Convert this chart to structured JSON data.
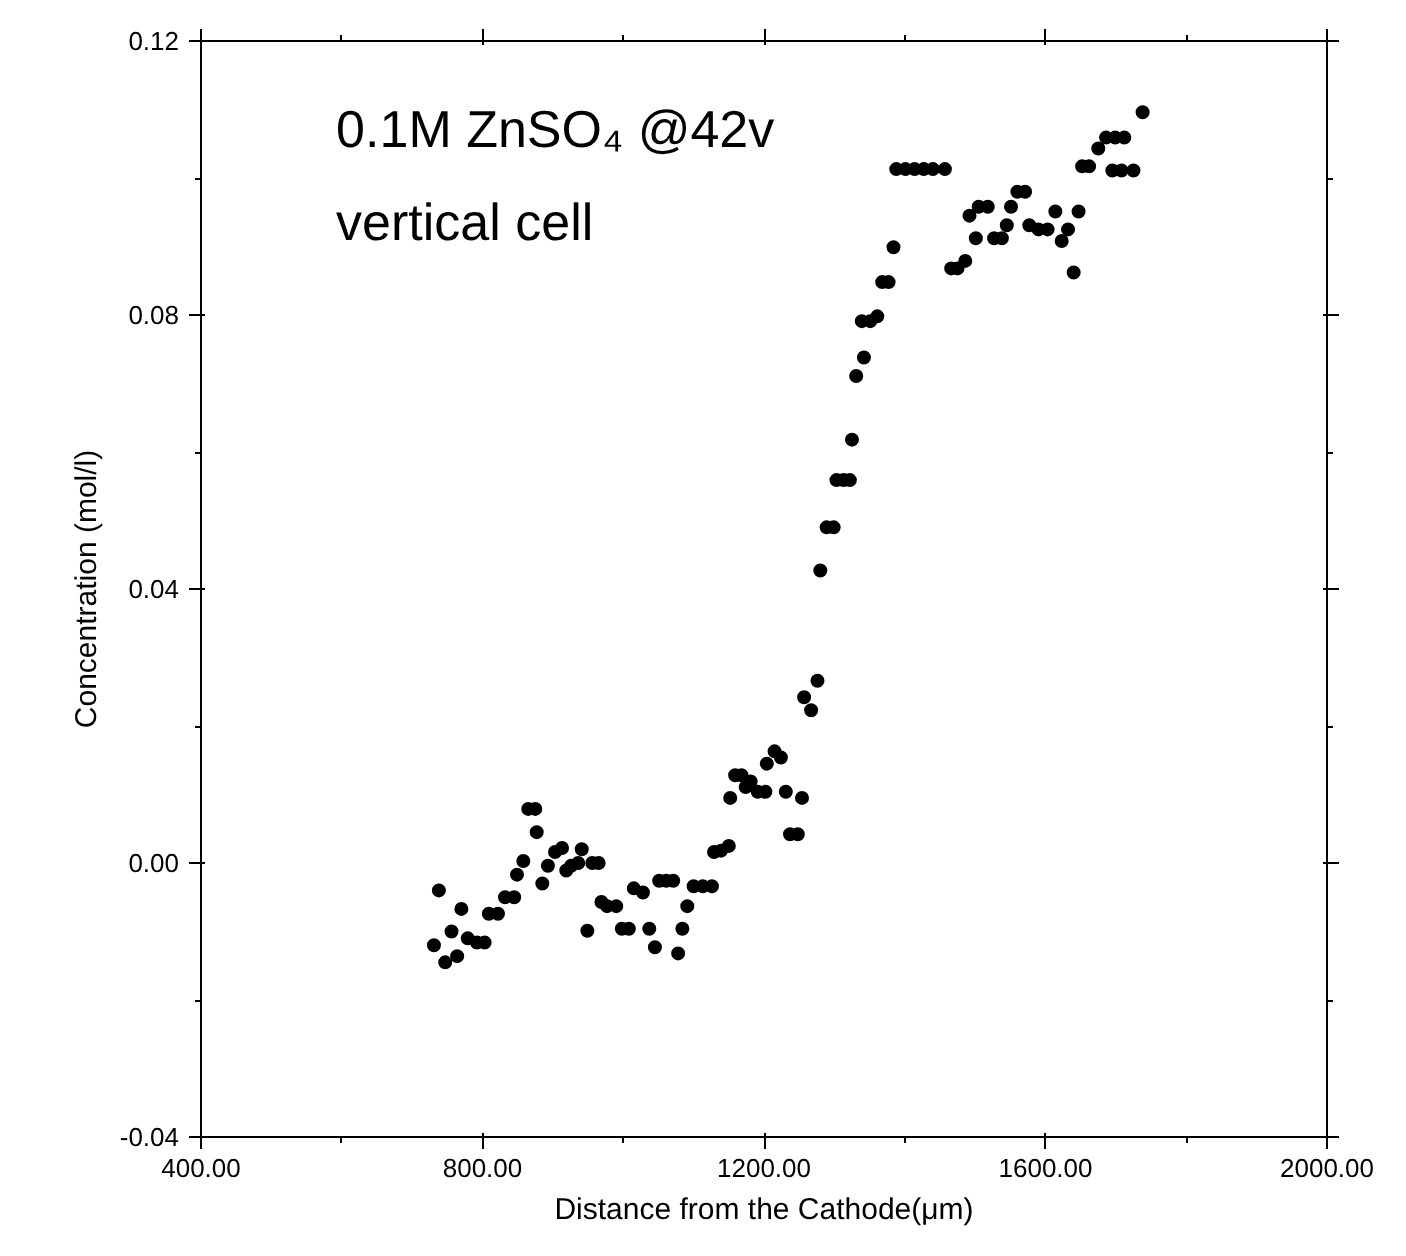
{
  "chart_data": {
    "type": "scatter",
    "xlabel": "Distance from the Cathode(μm)",
    "ylabel": "Concentration (mol/l)",
    "annotations": [
      "0.1M ZnSO₄ @42v",
      "vertical cell"
    ],
    "xlim": [
      400,
      2000
    ],
    "ylim": [
      -0.04,
      0.12
    ],
    "xticks": [
      {
        "value": 400,
        "label": "400.00"
      },
      {
        "value": 800,
        "label": "800.00"
      },
      {
        "value": 1200,
        "label": "1200.00"
      },
      {
        "value": 1600,
        "label": "1600.00"
      },
      {
        "value": 2000,
        "label": "2000.00"
      }
    ],
    "yticks": [
      {
        "value": -0.04,
        "label": "-0.04"
      },
      {
        "value": 0,
        "label": "0.00"
      },
      0.04,
      0.08,
      0.12
    ],
    "marker": "circle",
    "series": [
      {
        "color": "#000000",
        "x": [
          731,
          738,
          747,
          756,
          764,
          770,
          779,
          792,
          803,
          809,
          822,
          832,
          845,
          849,
          858,
          865,
          875,
          877,
          885,
          893,
          903,
          913,
          919,
          926,
          936,
          941,
          949,
          956,
          965,
          969,
          977,
          990,
          998,
          1008,
          1015,
          1028,
          1037,
          1045,
          1051,
          1061,
          1071,
          1078,
          1084,
          1091,
          1100,
          1113,
          1126,
          1129,
          1139,
          1150,
          1152,
          1159,
          1168,
          1174,
          1181,
          1191,
          1202,
          1204,
          1215,
          1224,
          1231,
          1237,
          1248,
          1254,
          1257,
          1267,
          1276,
          1280,
          1289,
          1299,
          1303,
          1313,
          1322,
          1325,
          1331,
          1339,
          1342,
          1351,
          1361,
          1368,
          1377,
          1384,
          1388,
          1401,
          1414,
          1427,
          1440,
          1457,
          1466,
          1475,
          1486,
          1492,
          1501,
          1505,
          1518,
          1527,
          1538,
          1545,
          1551,
          1560,
          1571,
          1577,
          1590,
          1603,
          1614,
          1623,
          1632,
          1640,
          1647,
          1652,
          1662,
          1675,
          1686,
          1695,
          1699,
          1708,
          1712,
          1725,
          1738
        ],
        "values": [
          -0.012,
          -0.004,
          -0.0145,
          -0.01,
          -0.0136,
          -0.0067,
          -0.011,
          -0.0116,
          -0.0116,
          -0.0074,
          -0.0074,
          -0.005,
          -0.005,
          -0.0017,
          0.0003,
          0.0079,
          0.0079,
          0.0045,
          -0.003,
          -0.0004,
          0.0016,
          0.0022,
          -0.0011,
          -0.0004,
          0.0,
          0.002,
          -0.0099,
          0.0,
          0.0,
          -0.0057,
          -0.0063,
          -0.0063,
          -0.0096,
          -0.0096,
          -0.0037,
          -0.0043,
          -0.0096,
          -0.0123,
          -0.0026,
          -0.0026,
          -0.0026,
          -0.0132,
          -0.0096,
          -0.0063,
          -0.0034,
          -0.0034,
          -0.0034,
          0.0016,
          0.0018,
          0.0025,
          0.0095,
          0.0128,
          0.0128,
          0.0111,
          0.0119,
          0.0104,
          0.0104,
          0.0145,
          0.0163,
          0.0154,
          0.0104,
          0.0042,
          0.0042,
          0.0095,
          0.0242,
          0.0223,
          0.0266,
          0.0427,
          0.049,
          0.049,
          0.0559,
          0.0559,
          0.0559,
          0.0618,
          0.0711,
          0.0791,
          0.0738,
          0.0791,
          0.0798,
          0.0848,
          0.0848,
          0.0899,
          0.1013,
          0.1013,
          0.1013,
          0.1013,
          0.1013,
          0.1013,
          0.0868,
          0.0868,
          0.0879,
          0.0945,
          0.0912,
          0.0958,
          0.0958,
          0.0912,
          0.0912,
          0.0931,
          0.0958,
          0.098,
          0.098,
          0.0931,
          0.0925,
          0.0925,
          0.0951,
          0.0908,
          0.0925,
          0.0862,
          0.0951,
          0.1017,
          0.1017,
          0.1043,
          0.1059,
          0.1011,
          0.1059,
          0.1011,
          0.1059,
          0.1011,
          0.1096
        ]
      }
    ]
  }
}
